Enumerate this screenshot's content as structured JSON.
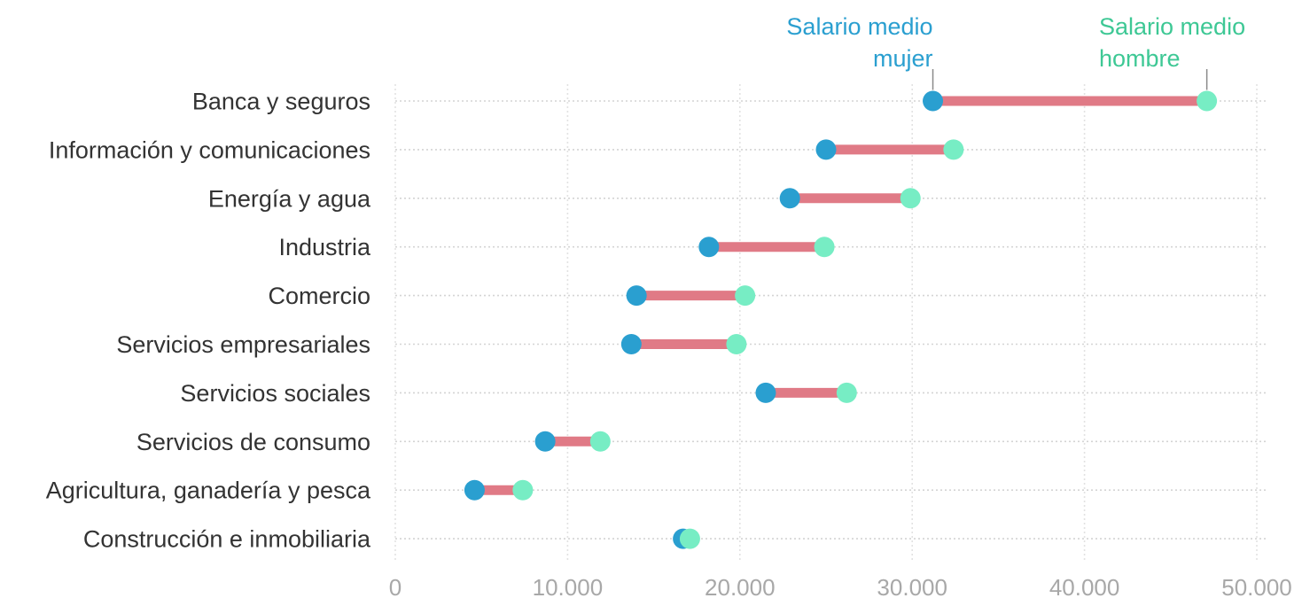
{
  "chart_data": {
    "type": "dumbbell",
    "categories": [
      "Banca y seguros",
      "Información y comunicaciones",
      "Energía y agua",
      "Industria",
      "Comercio",
      "Servicios empresariales",
      "Servicios sociales",
      "Servicios de consumo",
      "Agricultura, ganadería y pesca",
      "Construcción e inmobiliaria"
    ],
    "series": [
      {
        "name": "Salario medio mujer",
        "color": "#2a9fd0",
        "values": [
          31200,
          25000,
          22900,
          18200,
          14000,
          13700,
          21500,
          8700,
          4600,
          16700
        ]
      },
      {
        "name": "Salario medio hombre",
        "color": "#77edc4",
        "values": [
          47100,
          32400,
          29900,
          24900,
          20300,
          19800,
          26200,
          11900,
          7400,
          17100
        ]
      }
    ],
    "legend_lines": {
      "mujer": [
        "Salario medio",
        "mujer"
      ],
      "hombre": [
        "Salario medio",
        "hombre"
      ]
    },
    "legend_text_colors": {
      "mujer": "#2a9fd0",
      "hombre": "#3ec895"
    },
    "gap_color": "#e07a86",
    "xlim": [
      0,
      50000
    ],
    "xticks": [
      0,
      10000,
      20000,
      30000,
      40000,
      50000
    ],
    "xtick_labels": [
      "0",
      "10.000",
      "20.000",
      "30.000",
      "40.000",
      "50.000"
    ],
    "xlabel": "",
    "ylabel": "",
    "title": "",
    "grid": true
  }
}
